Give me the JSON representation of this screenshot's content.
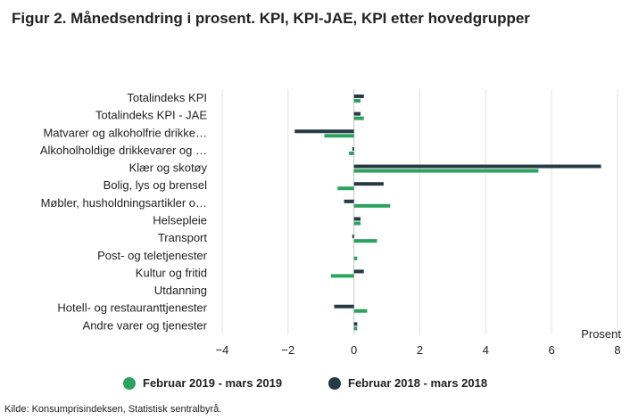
{
  "title": "Figur 2. Månedsendring i prosent. KPI, KPI-JAE, KPI etter hovedgrupper",
  "source": "Kilde: Konsumprisindeksen, Statistisk sentralbyrå.",
  "colors": {
    "series_2019": "#2ca25f",
    "series_2018": "#253a44",
    "grid": "#e3e3e3",
    "zero_line": "#c4c4c4"
  },
  "chart_data": {
    "type": "bar",
    "orientation": "horizontal",
    "title": "Figur 2. Månedsendring i prosent. KPI, KPI-JAE, KPI etter hovedgrupper",
    "xlabel": "Prosent",
    "ylabel": "",
    "xlim": [
      -4,
      8
    ],
    "xticks": [
      -4,
      -2,
      0,
      2,
      4,
      6,
      8
    ],
    "grid": true,
    "legend_position": "bottom",
    "categories": [
      "Totalindeks KPI",
      "Totalindeks KPI - JAE",
      "Matvarer og alkoholfrie drikke…",
      "Alkoholholdige drikkevarer og …",
      "Klær og skotøy",
      "Bolig, lys og brensel",
      "Møbler, husholdningsartikler o…",
      "Helsepleie",
      "Transport",
      "Post- og teletjenester",
      "Kultur og fritid",
      "Utdanning",
      "Hotell- og restauranttjenester",
      "Andre varer og tjenester"
    ],
    "series": [
      {
        "name": "Februar 2018 - mars 2018",
        "color": "#253a44",
        "values": [
          0.3,
          0.2,
          -1.8,
          -0.05,
          7.5,
          0.9,
          -0.3,
          0.2,
          -0.05,
          0.0,
          0.3,
          0.0,
          -0.6,
          0.1
        ]
      },
      {
        "name": "Februar 2019 - mars 2019",
        "color": "#2ca25f",
        "values": [
          0.2,
          0.3,
          -0.9,
          -0.15,
          5.6,
          -0.5,
          1.1,
          0.2,
          0.7,
          0.1,
          -0.7,
          0.0,
          0.4,
          0.1
        ]
      }
    ]
  }
}
